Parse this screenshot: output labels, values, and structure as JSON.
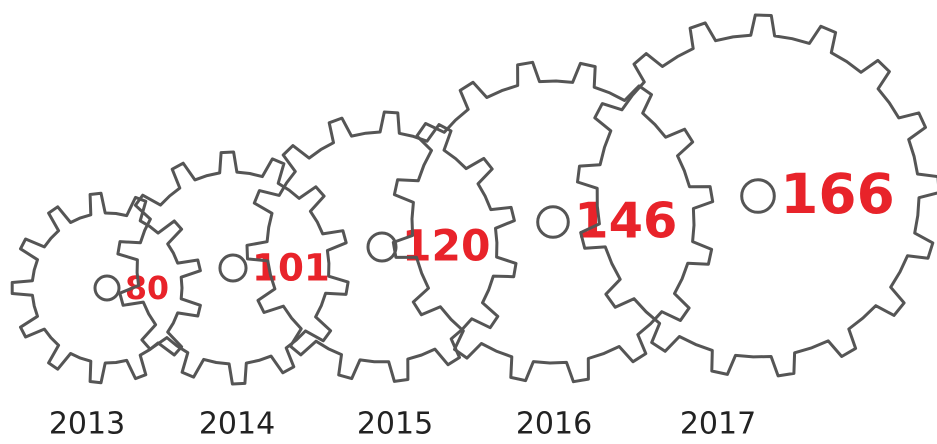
{
  "chart_data": {
    "type": "gears",
    "categories": [
      "2013",
      "2014",
      "2015",
      "2016",
      "2017"
    ],
    "values": [
      80,
      101,
      120,
      146,
      166
    ],
    "color": "#e8232a"
  }
}
